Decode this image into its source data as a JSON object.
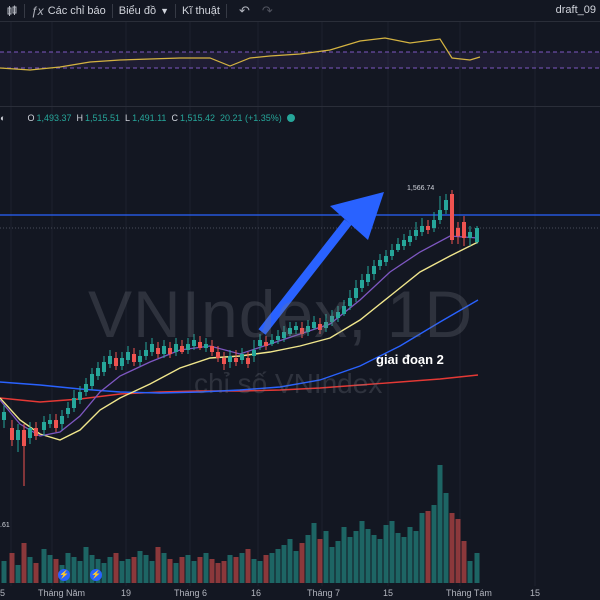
{
  "toolbar": {
    "indicators_label": "Các chỉ báo",
    "chart_type_label": "Biểu đồ",
    "technical_label": "Kĩ thuật",
    "layout_name": "draft_09"
  },
  "legend": {
    "o_label": "O",
    "o_value": "1,493.37",
    "h_label": "H",
    "h_value": "1,515.51",
    "l_label": "L",
    "l_value": "1,491.11",
    "c_label": "C",
    "c_value": "1,515.42",
    "change": "20.21 (+1.35%)"
  },
  "watermark": {
    "symbol": "VNIndex, 1D",
    "description": "chỉ số VNIndex"
  },
  "annotations": {
    "phase_text": "giai đoạn 2",
    "high_label": "1,566.74"
  },
  "volume_label": ".61",
  "time_axis": [
    {
      "label": "5"
    },
    {
      "label": "Tháng Năm"
    },
    {
      "label": "19"
    },
    {
      "label": "Tháng 6"
    },
    {
      "label": "16"
    },
    {
      "label": "Tháng 7"
    },
    {
      "label": "15"
    },
    {
      "label": "Tháng Tám"
    },
    {
      "label": "15"
    }
  ],
  "colors": {
    "background": "#131722",
    "up": "#26a69a",
    "down": "#ef5350",
    "horizontal_line": "#2962ff",
    "arrow": "#2962ff",
    "ma_fast": "#7e57c2",
    "ma_mid": "#f0e68c",
    "ma_slow_blue": "#2962ff",
    "ma_slow_red": "#e53935"
  }
}
